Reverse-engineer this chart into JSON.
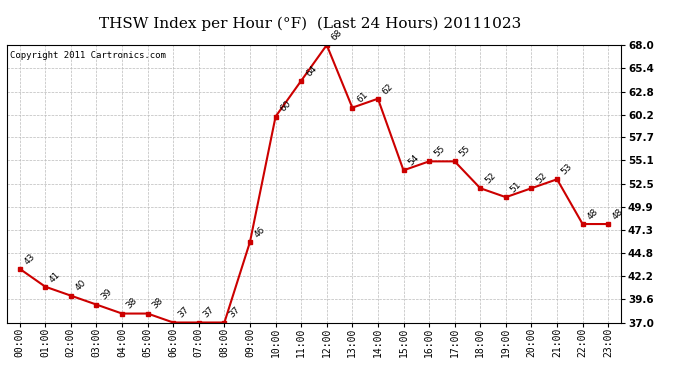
{
  "title": "THSW Index per Hour (°F)  (Last 24 Hours) 20111023",
  "copyright": "Copyright 2011 Cartronics.com",
  "hours": [
    "00:00",
    "01:00",
    "02:00",
    "03:00",
    "04:00",
    "05:00",
    "06:00",
    "07:00",
    "08:00",
    "09:00",
    "10:00",
    "11:00",
    "12:00",
    "13:00",
    "14:00",
    "15:00",
    "16:00",
    "17:00",
    "18:00",
    "19:00",
    "20:00",
    "21:00",
    "22:00",
    "23:00"
  ],
  "values": [
    43,
    41,
    40,
    39,
    38,
    38,
    37,
    37,
    37,
    46,
    60,
    64,
    68,
    61,
    62,
    54,
    55,
    55,
    52,
    51,
    52,
    53,
    48,
    48
  ],
  "line_color": "#cc0000",
  "marker_color": "#cc0000",
  "grid_color": "#bbbbbb",
  "bg_color": "#ffffff",
  "title_fontsize": 11,
  "ylim_min": 37.0,
  "ylim_max": 68.0,
  "yticks": [
    37.0,
    39.6,
    42.2,
    44.8,
    47.3,
    49.9,
    52.5,
    55.1,
    57.7,
    60.2,
    62.8,
    65.4,
    68.0
  ]
}
